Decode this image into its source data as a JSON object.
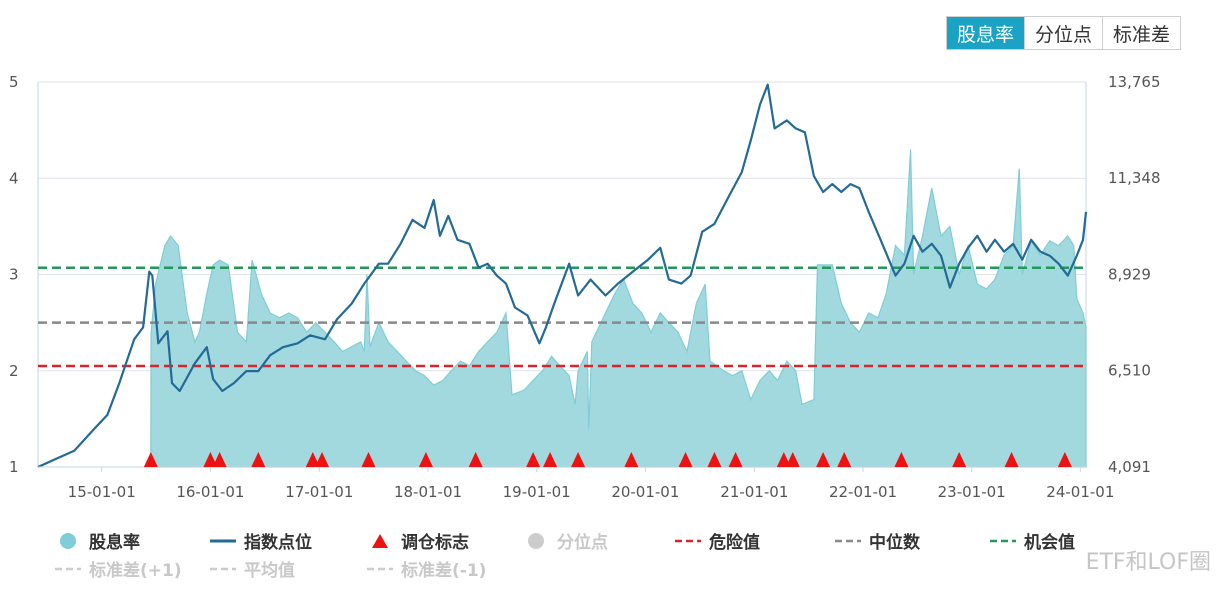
{
  "tabs": [
    {
      "label": "股息率",
      "active": true
    },
    {
      "label": "分位点",
      "active": false
    },
    {
      "label": "标准差",
      "active": false
    }
  ],
  "colors": {
    "accent": "#1aa3c4",
    "dividend_fill": "#a1d9df",
    "dividend_line": "#7fcdd6",
    "index_line": "#236a96",
    "danger": "#d8242a",
    "median": "#888888",
    "opportunity": "#22995a",
    "marker": "#ee1111"
  },
  "legend": {
    "row1": [
      {
        "label": "股息率",
        "icon": "circle-icon",
        "active": true
      },
      {
        "label": "指数点位",
        "icon": "line-icon",
        "active": true
      },
      {
        "label": "调仓标志",
        "icon": "triangle-icon",
        "active": true
      },
      {
        "label": "分位点",
        "icon": "circle-icon",
        "active": false
      },
      {
        "label": "危险值",
        "icon": "dashed-line-icon",
        "active": true
      },
      {
        "label": "中位数",
        "icon": "dashed-line-icon",
        "active": true
      },
      {
        "label": "机会值",
        "icon": "dashed-line-icon",
        "active": true
      }
    ],
    "row2": [
      {
        "label": "标准差(+1)",
        "icon": "dashed-line-icon",
        "active": false
      },
      {
        "label": "平均值",
        "icon": "dashed-line-icon",
        "active": false
      },
      {
        "label": "标准差(-1)",
        "icon": "dashed-line-icon",
        "active": false
      }
    ]
  },
  "watermark": "ETF和LOF圈",
  "chart_data": {
    "type": "line",
    "x_range": [
      "2014-06-01",
      "2024-01-20"
    ],
    "x_ticks": [
      "15-01-01",
      "16-01-01",
      "17-01-01",
      "18-01-01",
      "19-01-01",
      "20-01-01",
      "21-01-01",
      "22-01-01",
      "23-01-01",
      "24-01-01"
    ],
    "y_left": {
      "min": 1,
      "max": 5,
      "ticks": [
        "1",
        "2",
        "3",
        "4",
        "5"
      ]
    },
    "y_right": {
      "min": 4091,
      "max": 13765,
      "ticks": [
        "4,091",
        "6,510",
        "8,929",
        "11,348",
        "13,765"
      ]
    },
    "reference_lines": [
      {
        "name": "危险值",
        "value": 2.05
      },
      {
        "name": "中位数",
        "value": 2.5
      },
      {
        "name": "机会值",
        "value": 3.07
      }
    ],
    "series": [
      {
        "name": "股息率",
        "axis": "left",
        "kind": "area",
        "points": [
          [
            "2015-06-15",
            1.0
          ],
          [
            "2015-06-16",
            2.4
          ],
          [
            "2015-07-01",
            2.9
          ],
          [
            "2015-08-01",
            3.3
          ],
          [
            "2015-08-20",
            3.4
          ],
          [
            "2015-09-15",
            3.3
          ],
          [
            "2015-10-15",
            2.6
          ],
          [
            "2015-11-10",
            2.3
          ],
          [
            "2015-11-25",
            2.4
          ],
          [
            "2015-12-20",
            2.8
          ],
          [
            "2016-01-10",
            3.1
          ],
          [
            "2016-02-01",
            3.15
          ],
          [
            "2016-03-01",
            3.1
          ],
          [
            "2016-04-01",
            2.4
          ],
          [
            "2016-05-01",
            2.3
          ],
          [
            "2016-05-20",
            3.15
          ],
          [
            "2016-06-20",
            2.8
          ],
          [
            "2016-07-20",
            2.6
          ],
          [
            "2016-08-20",
            2.55
          ],
          [
            "2016-09-20",
            2.6
          ],
          [
            "2016-10-20",
            2.55
          ],
          [
            "2016-11-20",
            2.4
          ],
          [
            "2016-12-20",
            2.5
          ],
          [
            "2017-01-20",
            2.4
          ],
          [
            "2017-02-20",
            2.3
          ],
          [
            "2017-03-20",
            2.2
          ],
          [
            "2017-04-20",
            2.25
          ],
          [
            "2017-05-20",
            2.3
          ],
          [
            "2017-06-01",
            2.2
          ],
          [
            "2017-06-10",
            3.0
          ],
          [
            "2017-06-20",
            2.25
          ],
          [
            "2017-07-20",
            2.5
          ],
          [
            "2017-08-20",
            2.3
          ],
          [
            "2017-09-20",
            2.2
          ],
          [
            "2017-10-20",
            2.1
          ],
          [
            "2017-11-20",
            2.0
          ],
          [
            "2017-12-20",
            1.95
          ],
          [
            "2018-01-20",
            1.85
          ],
          [
            "2018-02-20",
            1.9
          ],
          [
            "2018-03-20",
            2.0
          ],
          [
            "2018-04-20",
            2.1
          ],
          [
            "2018-05-20",
            2.05
          ],
          [
            "2018-06-20",
            2.2
          ],
          [
            "2018-07-20",
            2.3
          ],
          [
            "2018-08-20",
            2.4
          ],
          [
            "2018-09-20",
            2.6
          ],
          [
            "2018-10-10",
            1.75
          ],
          [
            "2018-11-20",
            1.8
          ],
          [
            "2018-12-20",
            1.9
          ],
          [
            "2019-01-20",
            2.0
          ],
          [
            "2019-02-20",
            2.15
          ],
          [
            "2019-03-20",
            2.05
          ],
          [
            "2019-04-20",
            1.95
          ],
          [
            "2019-05-10",
            1.65
          ],
          [
            "2019-05-20",
            2.0
          ],
          [
            "2019-06-20",
            2.2
          ],
          [
            "2019-06-25",
            1.4
          ],
          [
            "2019-07-05",
            2.3
          ],
          [
            "2019-08-20",
            2.6
          ],
          [
            "2019-09-20",
            2.8
          ],
          [
            "2019-10-20",
            2.95
          ],
          [
            "2019-11-20",
            2.7
          ],
          [
            "2019-12-20",
            2.6
          ],
          [
            "2020-01-20",
            2.4
          ],
          [
            "2020-02-20",
            2.6
          ],
          [
            "2020-03-20",
            2.5
          ],
          [
            "2020-04-20",
            2.4
          ],
          [
            "2020-05-20",
            2.2
          ],
          [
            "2020-06-20",
            2.7
          ],
          [
            "2020-07-20",
            2.9
          ],
          [
            "2020-08-05",
            2.1
          ],
          [
            "2020-09-20",
            2.0
          ],
          [
            "2020-10-20",
            1.95
          ],
          [
            "2020-11-20",
            2.0
          ],
          [
            "2020-12-20",
            1.7
          ],
          [
            "2021-01-20",
            1.9
          ],
          [
            "2021-02-20",
            2.0
          ],
          [
            "2021-03-20",
            1.9
          ],
          [
            "2021-04-20",
            2.1
          ],
          [
            "2021-05-20",
            2.0
          ],
          [
            "2021-06-10",
            1.65
          ],
          [
            "2021-07-20",
            1.7
          ],
          [
            "2021-08-01",
            3.1
          ],
          [
            "2021-08-20",
            3.1
          ],
          [
            "2021-09-20",
            3.1
          ],
          [
            "2021-10-20",
            2.7
          ],
          [
            "2021-11-20",
            2.5
          ],
          [
            "2021-12-20",
            2.4
          ],
          [
            "2022-01-20",
            2.6
          ],
          [
            "2022-02-20",
            2.55
          ],
          [
            "2022-03-20",
            2.8
          ],
          [
            "2022-04-20",
            3.3
          ],
          [
            "2022-05-20",
            3.2
          ],
          [
            "2022-06-10",
            4.3
          ],
          [
            "2022-06-20",
            3.0
          ],
          [
            "2022-07-20",
            3.4
          ],
          [
            "2022-08-20",
            3.9
          ],
          [
            "2022-09-20",
            3.4
          ],
          [
            "2022-10-20",
            3.5
          ],
          [
            "2022-11-20",
            3.0
          ],
          [
            "2022-12-20",
            3.3
          ],
          [
            "2023-01-20",
            2.9
          ],
          [
            "2023-02-20",
            2.85
          ],
          [
            "2023-03-20",
            2.95
          ],
          [
            "2023-04-20",
            3.2
          ],
          [
            "2023-05-20",
            3.3
          ],
          [
            "2023-06-10",
            4.1
          ],
          [
            "2023-06-20",
            3.0
          ],
          [
            "2023-07-20",
            3.35
          ],
          [
            "2023-08-20",
            3.2
          ],
          [
            "2023-09-20",
            3.35
          ],
          [
            "2023-10-20",
            3.3
          ],
          [
            "2023-11-20",
            3.4
          ],
          [
            "2023-12-10",
            3.3
          ],
          [
            "2023-12-20",
            2.75
          ],
          [
            "2024-01-10",
            2.6
          ],
          [
            "2024-01-20",
            2.45
          ],
          [
            "2024-01-20",
            1.0
          ]
        ]
      },
      {
        "name": "指数点位",
        "axis": "right",
        "kind": "line",
        "points": [
          [
            "2014-06-01",
            4091
          ],
          [
            "2014-08-01",
            4300
          ],
          [
            "2014-10-01",
            4500
          ],
          [
            "2014-12-01",
            5000
          ],
          [
            "2015-01-20",
            5400
          ],
          [
            "2015-03-01",
            6200
          ],
          [
            "2015-04-20",
            7300
          ],
          [
            "2015-05-20",
            7600
          ],
          [
            "2015-06-10",
            9000
          ],
          [
            "2015-06-20",
            8900
          ],
          [
            "2015-07-10",
            7200
          ],
          [
            "2015-08-10",
            7500
          ],
          [
            "2015-08-25",
            6200
          ],
          [
            "2015-09-20",
            6000
          ],
          [
            "2015-11-10",
            6700
          ],
          [
            "2015-12-20",
            7100
          ],
          [
            "2016-01-10",
            6300
          ],
          [
            "2016-02-10",
            6000
          ],
          [
            "2016-03-20",
            6200
          ],
          [
            "2016-05-01",
            6500
          ],
          [
            "2016-06-10",
            6500
          ],
          [
            "2016-07-20",
            6900
          ],
          [
            "2016-09-01",
            7100
          ],
          [
            "2016-10-20",
            7200
          ],
          [
            "2016-12-01",
            7400
          ],
          [
            "2017-01-20",
            7300
          ],
          [
            "2017-03-01",
            7800
          ],
          [
            "2017-04-20",
            8200
          ],
          [
            "2017-06-01",
            8700
          ],
          [
            "2017-07-20",
            9200
          ],
          [
            "2017-08-20",
            9200
          ],
          [
            "2017-10-01",
            9700
          ],
          [
            "2017-11-10",
            10300
          ],
          [
            "2017-12-20",
            10100
          ],
          [
            "2018-01-20",
            10800
          ],
          [
            "2018-02-10",
            9900
          ],
          [
            "2018-03-10",
            10400
          ],
          [
            "2018-04-10",
            9800
          ],
          [
            "2018-05-20",
            9700
          ],
          [
            "2018-06-20",
            9100
          ],
          [
            "2018-07-20",
            9200
          ],
          [
            "2018-08-20",
            8900
          ],
          [
            "2018-09-20",
            8700
          ],
          [
            "2018-10-20",
            8100
          ],
          [
            "2018-12-01",
            7900
          ],
          [
            "2019-01-10",
            7200
          ],
          [
            "2019-02-01",
            7600
          ],
          [
            "2019-03-01",
            8200
          ],
          [
            "2019-04-20",
            9200
          ],
          [
            "2019-05-20",
            8400
          ],
          [
            "2019-07-01",
            8800
          ],
          [
            "2019-08-20",
            8400
          ],
          [
            "2019-10-01",
            8700
          ],
          [
            "2019-11-20",
            9000
          ],
          [
            "2020-01-10",
            9300
          ],
          [
            "2020-02-20",
            9600
          ],
          [
            "2020-03-20",
            8800
          ],
          [
            "2020-05-01",
            8700
          ],
          [
            "2020-06-01",
            8900
          ],
          [
            "2020-07-10",
            10000
          ],
          [
            "2020-08-20",
            10200
          ],
          [
            "2020-10-01",
            10800
          ],
          [
            "2020-11-20",
            11500
          ],
          [
            "2020-12-20",
            12300
          ],
          [
            "2021-01-20",
            13200
          ],
          [
            "2021-02-15",
            13700
          ],
          [
            "2021-03-10",
            12600
          ],
          [
            "2021-04-20",
            12800
          ],
          [
            "2021-05-20",
            12600
          ],
          [
            "2021-06-20",
            12500
          ],
          [
            "2021-07-20",
            11400
          ],
          [
            "2021-08-20",
            11000
          ],
          [
            "2021-09-20",
            11200
          ],
          [
            "2021-10-20",
            11000
          ],
          [
            "2021-11-20",
            11200
          ],
          [
            "2021-12-20",
            11100
          ],
          [
            "2022-01-20",
            10500
          ],
          [
            "2022-03-01",
            9800
          ],
          [
            "2022-04-20",
            8900
          ],
          [
            "2022-05-20",
            9200
          ],
          [
            "2022-06-20",
            9900
          ],
          [
            "2022-07-20",
            9500
          ],
          [
            "2022-08-20",
            9700
          ],
          [
            "2022-09-20",
            9400
          ],
          [
            "2022-10-20",
            8600
          ],
          [
            "2022-11-20",
            9200
          ],
          [
            "2022-12-20",
            9600
          ],
          [
            "2023-01-20",
            9900
          ],
          [
            "2023-02-20",
            9500
          ],
          [
            "2023-03-20",
            9800
          ],
          [
            "2023-04-20",
            9500
          ],
          [
            "2023-05-20",
            9700
          ],
          [
            "2023-06-20",
            9300
          ],
          [
            "2023-07-20",
            9800
          ],
          [
            "2023-08-20",
            9500
          ],
          [
            "2023-09-20",
            9400
          ],
          [
            "2023-10-20",
            9200
          ],
          [
            "2023-11-20",
            8900
          ],
          [
            "2023-12-20",
            9400
          ],
          [
            "2024-01-10",
            9800
          ],
          [
            "2024-01-20",
            10500
          ]
        ]
      }
    ],
    "rebalance_markers": [
      "2015-06-15",
      "2016-01-01",
      "2016-02-01",
      "2016-06-10",
      "2016-12-10",
      "2017-01-10",
      "2017-06-15",
      "2017-12-25",
      "2018-06-10",
      "2018-12-20",
      "2019-02-15",
      "2019-05-20",
      "2019-11-15",
      "2020-05-15",
      "2020-08-20",
      "2020-10-30",
      "2021-04-10",
      "2021-05-10",
      "2021-08-20",
      "2021-10-30",
      "2022-05-10",
      "2022-11-20",
      "2023-05-15",
      "2023-11-10"
    ]
  }
}
